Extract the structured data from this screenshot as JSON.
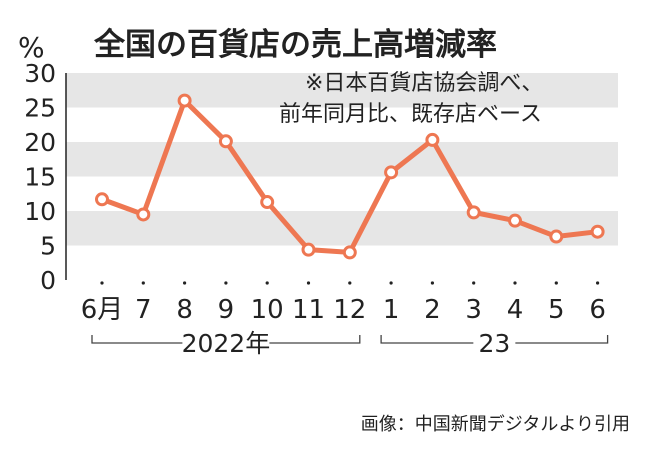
{
  "chart_data": {
    "type": "line",
    "title": "全国の百貨店の売上高増減率",
    "unit": "%",
    "note": [
      "※日本百貨店協会調べ、",
      "前年同月比、既存店ベース"
    ],
    "categories": [
      "6月",
      "7",
      "8",
      "9",
      "10",
      "11",
      "12",
      "1",
      "2",
      "3",
      "4",
      "5",
      "6"
    ],
    "values": [
      11.7,
      9.5,
      26.0,
      20.1,
      11.3,
      4.4,
      4.0,
      15.6,
      20.3,
      9.8,
      8.6,
      6.3,
      7.0
    ],
    "year_groups": [
      {
        "label": "2022年",
        "from": 0,
        "to": 6
      },
      {
        "label": "23",
        "from": 7,
        "to": 12
      }
    ],
    "ylim": [
      0,
      30
    ],
    "yticks": [
      0,
      5,
      10,
      15,
      20,
      25,
      30
    ],
    "grid": "alternating bands",
    "colors": {
      "line": "#ee7752",
      "band": "#e6e6e6",
      "text": "#222222"
    }
  },
  "credit": "画像：中国新聞デジタルより引用"
}
